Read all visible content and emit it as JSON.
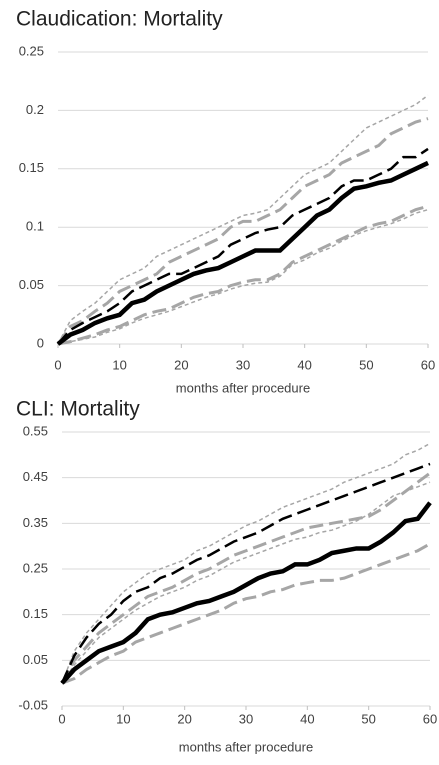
{
  "chart_data": [
    {
      "type": "line",
      "title": "Claudication: Mortality",
      "x_label": "months after procedure",
      "x": [
        0,
        2,
        4,
        6,
        8,
        10,
        12,
        14,
        16,
        18,
        20,
        22,
        24,
        26,
        28,
        30,
        32,
        34,
        36,
        38,
        40,
        42,
        44,
        46,
        48,
        50,
        52,
        54,
        56,
        58,
        60
      ],
      "xlim": [
        0,
        60
      ],
      "xticks": [
        0,
        10,
        20,
        30,
        40,
        50,
        60
      ],
      "ylim": [
        0,
        0.25
      ],
      "yticks": [
        0,
        0.05,
        0.1,
        0.15,
        0.2,
        0.25
      ],
      "grid": true,
      "series": [
        {
          "color": "#a6a6a6",
          "dash": "dotted",
          "width": 1.5,
          "values": [
            0,
            0.02,
            0.028,
            0.035,
            0.045,
            0.055,
            0.06,
            0.065,
            0.075,
            0.08,
            0.085,
            0.09,
            0.095,
            0.1,
            0.105,
            0.11,
            0.112,
            0.115,
            0.125,
            0.135,
            0.145,
            0.15,
            0.155,
            0.165,
            0.175,
            0.185,
            0.19,
            0.195,
            0.2,
            0.205,
            0.213
          ]
        },
        {
          "color": "#a6a6a6",
          "dash": "dotted",
          "width": 1.5,
          "values": [
            0,
            0.002,
            0.004,
            0.006,
            0.01,
            0.013,
            0.018,
            0.022,
            0.025,
            0.028,
            0.032,
            0.036,
            0.04,
            0.043,
            0.047,
            0.05,
            0.052,
            0.053,
            0.058,
            0.068,
            0.072,
            0.078,
            0.082,
            0.088,
            0.093,
            0.097,
            0.1,
            0.103,
            0.107,
            0.112,
            0.115
          ]
        },
        {
          "color": "#a6a6a6",
          "dash": "dashed",
          "width": 3,
          "values": [
            0,
            0.015,
            0.02,
            0.028,
            0.035,
            0.045,
            0.05,
            0.055,
            0.06,
            0.07,
            0.075,
            0.08,
            0.085,
            0.09,
            0.1,
            0.105,
            0.105,
            0.11,
            0.115,
            0.125,
            0.135,
            0.14,
            0.145,
            0.155,
            0.16,
            0.165,
            0.17,
            0.18,
            0.185,
            0.19,
            0.193
          ]
        },
        {
          "color": "#a6a6a6",
          "dash": "dashed",
          "width": 3,
          "values": [
            0,
            0.002,
            0.005,
            0.008,
            0.012,
            0.015,
            0.02,
            0.025,
            0.028,
            0.03,
            0.035,
            0.04,
            0.043,
            0.045,
            0.05,
            0.053,
            0.055,
            0.055,
            0.06,
            0.07,
            0.075,
            0.08,
            0.085,
            0.09,
            0.095,
            0.1,
            0.103,
            0.105,
            0.11,
            0.115,
            0.118
          ]
        },
        {
          "color": "#000000",
          "dash": "dashed",
          "width": 2.5,
          "values": [
            0,
            0.012,
            0.018,
            0.023,
            0.028,
            0.035,
            0.045,
            0.05,
            0.055,
            0.06,
            0.06,
            0.065,
            0.07,
            0.075,
            0.085,
            0.09,
            0.095,
            0.098,
            0.1,
            0.11,
            0.115,
            0.12,
            0.125,
            0.135,
            0.14,
            0.14,
            0.145,
            0.15,
            0.16,
            0.16,
            0.167
          ]
        },
        {
          "color": "#000000",
          "dash": "solid",
          "width": 4.5,
          "values": [
            0,
            0.008,
            0.012,
            0.018,
            0.022,
            0.025,
            0.035,
            0.038,
            0.045,
            0.05,
            0.055,
            0.06,
            0.063,
            0.065,
            0.07,
            0.075,
            0.08,
            0.08,
            0.08,
            0.09,
            0.1,
            0.11,
            0.115,
            0.125,
            0.133,
            0.135,
            0.138,
            0.14,
            0.145,
            0.15,
            0.155
          ]
        }
      ]
    },
    {
      "type": "line",
      "title": "CLI: Mortality",
      "x_label": "months after procedure",
      "x": [
        0,
        2,
        4,
        6,
        8,
        10,
        12,
        14,
        16,
        18,
        20,
        22,
        24,
        26,
        28,
        30,
        32,
        34,
        36,
        38,
        40,
        42,
        44,
        46,
        48,
        50,
        52,
        54,
        56,
        58,
        60
      ],
      "xlim": [
        0,
        60
      ],
      "xticks": [
        0,
        10,
        20,
        30,
        40,
        50,
        60
      ],
      "ylim": [
        -0.05,
        0.55
      ],
      "yticks": [
        -0.05,
        0.05,
        0.15,
        0.25,
        0.35,
        0.45,
        0.55
      ],
      "grid": true,
      "series": [
        {
          "color": "#a6a6a6",
          "dash": "dotted",
          "width": 1.5,
          "values": [
            0,
            0.07,
            0.11,
            0.14,
            0.17,
            0.2,
            0.22,
            0.24,
            0.25,
            0.26,
            0.27,
            0.29,
            0.3,
            0.315,
            0.33,
            0.345,
            0.355,
            0.37,
            0.385,
            0.395,
            0.405,
            0.415,
            0.425,
            0.44,
            0.45,
            0.46,
            0.47,
            0.48,
            0.5,
            0.51,
            0.525
          ]
        },
        {
          "color": "#a6a6a6",
          "dash": "dotted",
          "width": 1.5,
          "values": [
            0,
            0.04,
            0.07,
            0.1,
            0.12,
            0.14,
            0.16,
            0.175,
            0.19,
            0.2,
            0.21,
            0.225,
            0.235,
            0.25,
            0.265,
            0.275,
            0.285,
            0.295,
            0.305,
            0.315,
            0.32,
            0.33,
            0.335,
            0.345,
            0.355,
            0.37,
            0.39,
            0.41,
            0.42,
            0.43,
            0.44
          ]
        },
        {
          "color": "#a6a6a6",
          "dash": "dashed",
          "width": 3,
          "values": [
            0,
            0.05,
            0.08,
            0.11,
            0.13,
            0.15,
            0.17,
            0.19,
            0.2,
            0.21,
            0.225,
            0.24,
            0.25,
            0.265,
            0.28,
            0.29,
            0.3,
            0.31,
            0.32,
            0.33,
            0.34,
            0.345,
            0.35,
            0.355,
            0.36,
            0.365,
            0.38,
            0.4,
            0.42,
            0.44,
            0.46
          ]
        },
        {
          "color": "#a6a6a6",
          "dash": "dashed",
          "width": 3,
          "values": [
            0,
            0.01,
            0.03,
            0.045,
            0.06,
            0.07,
            0.09,
            0.1,
            0.11,
            0.12,
            0.13,
            0.14,
            0.15,
            0.16,
            0.175,
            0.185,
            0.19,
            0.2,
            0.205,
            0.215,
            0.22,
            0.225,
            0.225,
            0.23,
            0.24,
            0.25,
            0.26,
            0.27,
            0.28,
            0.29,
            0.305
          ]
        },
        {
          "color": "#000000",
          "dash": "dashed",
          "width": 2.5,
          "values": [
            0,
            0.06,
            0.1,
            0.13,
            0.15,
            0.18,
            0.2,
            0.21,
            0.23,
            0.24,
            0.255,
            0.27,
            0.28,
            0.295,
            0.31,
            0.32,
            0.33,
            0.345,
            0.36,
            0.37,
            0.38,
            0.39,
            0.4,
            0.41,
            0.42,
            0.43,
            0.44,
            0.45,
            0.46,
            0.47,
            0.48
          ]
        },
        {
          "color": "#000000",
          "dash": "solid",
          "width": 4.5,
          "values": [
            0,
            0.03,
            0.05,
            0.07,
            0.08,
            0.09,
            0.11,
            0.14,
            0.15,
            0.155,
            0.165,
            0.175,
            0.18,
            0.19,
            0.2,
            0.215,
            0.23,
            0.24,
            0.245,
            0.26,
            0.26,
            0.27,
            0.285,
            0.29,
            0.295,
            0.295,
            0.31,
            0.33,
            0.355,
            0.36,
            0.395
          ]
        }
      ]
    }
  ]
}
